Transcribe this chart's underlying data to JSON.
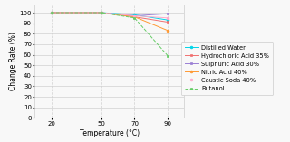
{
  "title": "",
  "xlabel": "Temperature (°C)",
  "ylabel": "Change Rate (%)",
  "x": [
    20,
    50,
    70,
    90
  ],
  "series": [
    {
      "label": "Distilled Water",
      "color": "#00d4e8",
      "marker": "o",
      "linestyle": "-",
      "values": [
        100,
        100,
        98,
        93
      ]
    },
    {
      "label": "Hydrochloric Acid 35%",
      "color": "#f07070",
      "marker": "s",
      "linestyle": "-",
      "values": [
        100,
        100,
        96,
        91
      ]
    },
    {
      "label": "Sulphuric Acid 30%",
      "color": "#9b7fd4",
      "marker": "s",
      "linestyle": "-",
      "values": [
        100,
        100,
        97,
        99
      ]
    },
    {
      "label": "Nitric Acid 40%",
      "color": "#ff9933",
      "marker": "o",
      "linestyle": "-",
      "values": [
        100,
        100,
        96,
        83
      ]
    },
    {
      "label": "Caustic Soda 40%",
      "color": "#ffaacc",
      "marker": "o",
      "linestyle": "-",
      "values": [
        100,
        100,
        97,
        95
      ]
    },
    {
      "label": "Butanol",
      "color": "#66cc66",
      "marker": "s",
      "linestyle": "--",
      "values": [
        100,
        100,
        95,
        59
      ]
    }
  ],
  "xlim": [
    10,
    100
  ],
  "ylim": [
    0,
    108
  ],
  "xticks": [
    20,
    50,
    70,
    90
  ],
  "yticks": [
    0,
    10,
    20,
    30,
    40,
    50,
    60,
    70,
    80,
    90,
    100
  ],
  "grid_color": "#d0d0d0",
  "bg_color": "#f8f8f8",
  "legend_fontsize": 4.8,
  "axis_label_fontsize": 5.5,
  "tick_fontsize": 5.0
}
